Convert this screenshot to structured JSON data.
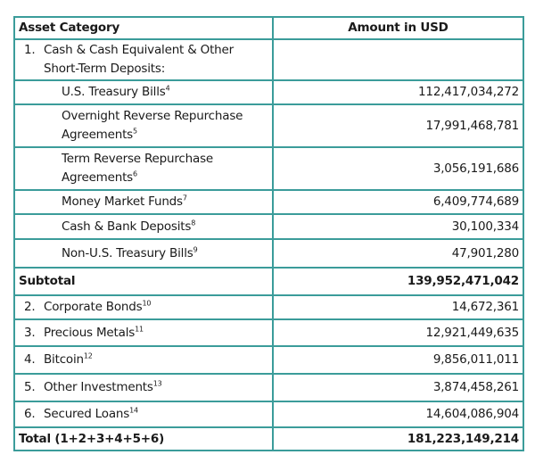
{
  "header": {
    "category": "Asset Category",
    "amount": "Amount in USD"
  },
  "section1": {
    "number": "1.",
    "label": "Cash & Cash Equivalent & Other Short-Term Deposits:"
  },
  "subitems": [
    {
      "label": "U.S. Treasury Bills",
      "note": "4",
      "amount": "112,417,034,272"
    },
    {
      "label": "Overnight Reverse Repurchase Agreements",
      "note": "5",
      "amount": "17,991,468,781"
    },
    {
      "label": "Term Reverse Repurchase Agreements",
      "note": "6",
      "amount": "3,056,191,686"
    },
    {
      "label": "Money Market Funds",
      "note": "7",
      "amount": "6,409,774,689"
    },
    {
      "label": "Cash & Bank Deposits",
      "note": "8",
      "amount": "30,100,334"
    },
    {
      "label": "Non-U.S. Treasury Bills",
      "note": "9",
      "amount": "47,901,280"
    }
  ],
  "subtotal": {
    "label": "Subtotal",
    "amount": "139,952,471,042"
  },
  "items": [
    {
      "number": "2.",
      "label": "Corporate Bonds",
      "note": "10",
      "amount": "14,672,361"
    },
    {
      "number": "3.",
      "label": "Precious Metals",
      "note": "11",
      "amount": "12,921,449,635"
    },
    {
      "number": "4.",
      "label": "Bitcoin",
      "note": "12",
      "amount": "9,856,011,011"
    },
    {
      "number": "5.",
      "label": "Other Investments",
      "note": "13",
      "amount": "3,874,458,261"
    },
    {
      "number": "6.",
      "label": "Secured Loans",
      "note": "14",
      "amount": "14,604,086,904"
    }
  ],
  "total": {
    "label": "Total (1+2+3+4+5+6)",
    "amount": "181,223,149,214"
  },
  "colors": {
    "border": "#3b9c9a"
  }
}
